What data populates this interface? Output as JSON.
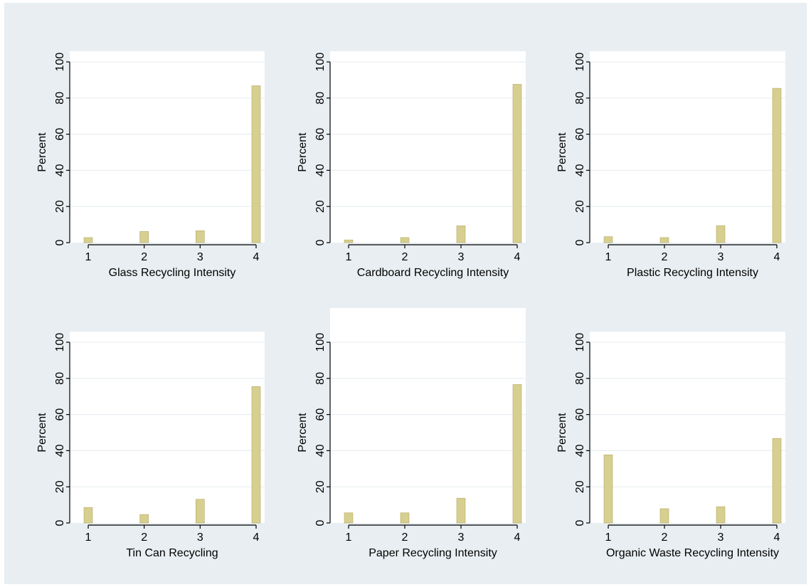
{
  "style": {
    "outer_background": "#e8eef1",
    "plot_background": "#ffffff",
    "gridline_color": "#e9eef1",
    "bar_fill": "#d7cf8f",
    "bar_stroke": "#b3a866",
    "axis_color": "#000000"
  },
  "chart_data": [
    {
      "type": "bar",
      "xlabel": "Glass Recycling Intensity",
      "ylabel": "Percent",
      "categories": [
        "1",
        "2",
        "3",
        "4"
      ],
      "values": [
        2.8,
        6.2,
        6.6,
        86.8
      ],
      "ylim": [
        0,
        100
      ],
      "yticks": [
        "0",
        "20",
        "40",
        "60",
        "80",
        "100"
      ],
      "grid": true
    },
    {
      "type": "bar",
      "xlabel": "Cardboard Recycling Intensity",
      "ylabel": "Percent",
      "categories": [
        "1",
        "2",
        "3",
        "4"
      ],
      "values": [
        1.5,
        2.8,
        9.3,
        87.6
      ],
      "ylim": [
        0,
        100
      ],
      "yticks": [
        "0",
        "20",
        "40",
        "60",
        "80",
        "100"
      ],
      "grid": true
    },
    {
      "type": "bar",
      "xlabel": "Plastic Recycling Intensity",
      "ylabel": "Percent",
      "categories": [
        "1",
        "2",
        "3",
        "4"
      ],
      "values": [
        3.3,
        2.8,
        9.4,
        85.4
      ],
      "ylim": [
        0,
        100
      ],
      "yticks": [
        "0",
        "20",
        "40",
        "60",
        "80",
        "100"
      ],
      "grid": true
    },
    {
      "type": "bar",
      "xlabel": "Tin Can Recycling",
      "ylabel": "Percent",
      "categories": [
        "1",
        "2",
        "3",
        "4"
      ],
      "values": [
        8.6,
        4.7,
        13.1,
        75.5
      ],
      "ylim": [
        0,
        100
      ],
      "yticks": [
        "0",
        "20",
        "40",
        "60",
        "80",
        "100"
      ],
      "grid": true
    },
    {
      "type": "bar",
      "xlabel": "Paper Recycling Intensity",
      "ylabel": "Percent",
      "categories": [
        "1",
        "2",
        "3",
        "4"
      ],
      "values": [
        5.6,
        5.6,
        13.7,
        76.6
      ],
      "ylim": [
        0,
        100
      ],
      "yticks": [
        "0",
        "20",
        "40",
        "60",
        "80",
        "100"
      ],
      "grid": true
    },
    {
      "type": "bar",
      "xlabel": "Organic Waste Recycling Intensity",
      "ylabel": "Percent",
      "categories": [
        "1",
        "2",
        "3",
        "4"
      ],
      "values": [
        37.7,
        7.9,
        9.0,
        46.8
      ],
      "ylim": [
        0,
        100
      ],
      "yticks": [
        "0",
        "20",
        "40",
        "60",
        "80",
        "100"
      ],
      "grid": true
    }
  ]
}
